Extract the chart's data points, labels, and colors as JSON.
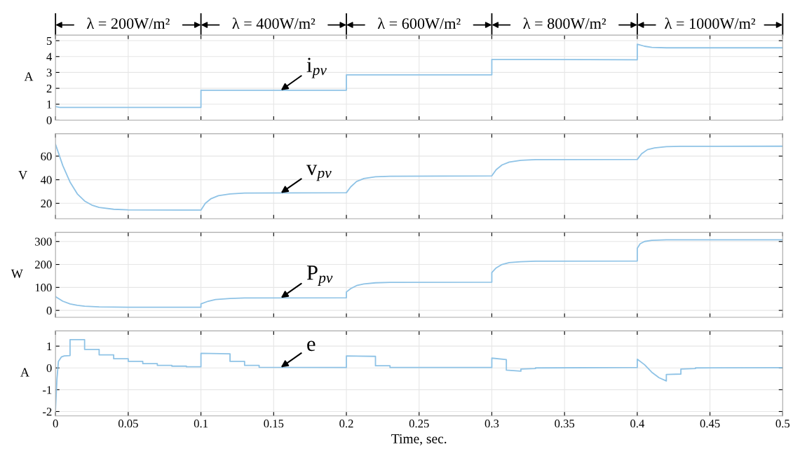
{
  "chart_data": [
    {
      "type": "line",
      "ylabel": "A",
      "xlim": [
        0,
        0.5
      ],
      "ylim": [
        0,
        5.35
      ],
      "yticks": [
        0,
        1,
        2,
        3,
        4,
        5
      ],
      "xticks": [
        0,
        0.05,
        0.1,
        0.15,
        0.2,
        0.25,
        0.3,
        0.35,
        0.4,
        0.45,
        0.5
      ],
      "tick_labels": "y",
      "grid": true,
      "annotations": [
        "λ = 200W/m²",
        "λ = 400W/m²",
        "λ = 600W/m²",
        "λ = 800W/m²",
        "λ = 1000W/m²"
      ],
      "series": [
        {
          "name": "i$_{pv}$",
          "color": "#8fc3e6",
          "x": [
            0,
            0.003,
            0.1,
            0.1,
            0.2,
            0.2,
            0.3,
            0.3,
            0.4,
            0.4,
            0.405,
            0.41,
            0.42,
            0.5
          ],
          "values": [
            0.85,
            0.8,
            0.8,
            1.88,
            1.88,
            2.85,
            2.85,
            3.82,
            3.8,
            4.78,
            4.65,
            4.58,
            4.55,
            4.55
          ]
        }
      ]
    },
    {
      "type": "line",
      "ylabel": "V",
      "xlim": [
        0,
        0.5
      ],
      "ylim": [
        7,
        79
      ],
      "yticks": [
        20,
        40,
        60
      ],
      "xticks": [
        0,
        0.05,
        0.1,
        0.15,
        0.2,
        0.25,
        0.3,
        0.35,
        0.4,
        0.45,
        0.5
      ],
      "tick_labels": "y",
      "grid": true,
      "series": [
        {
          "name": "v$_{pv}$",
          "color": "#8fc3e6",
          "x": [
            0,
            0.005,
            0.01,
            0.015,
            0.02,
            0.025,
            0.03,
            0.04,
            0.05,
            0.1,
            0.103,
            0.107,
            0.112,
            0.12,
            0.13,
            0.2,
            0.203,
            0.207,
            0.212,
            0.22,
            0.23,
            0.3,
            0.303,
            0.307,
            0.312,
            0.32,
            0.33,
            0.4,
            0.403,
            0.407,
            0.412,
            0.42,
            0.43,
            0.5
          ],
          "values": [
            70,
            52,
            38,
            28,
            22,
            18.5,
            16.5,
            15,
            14.5,
            14.3,
            20,
            24,
            26.5,
            28,
            28.7,
            29,
            34,
            38.5,
            41,
            42.5,
            43,
            43.3,
            48.5,
            52.5,
            55,
            56.5,
            57,
            57.2,
            62,
            65.5,
            67,
            68,
            68.3,
            68.4
          ]
        }
      ]
    },
    {
      "type": "line",
      "ylabel": "W",
      "xlim": [
        0,
        0.5
      ],
      "ylim": [
        -30,
        340
      ],
      "yticks": [
        0,
        100,
        200,
        300
      ],
      "xticks": [
        0,
        0.05,
        0.1,
        0.15,
        0.2,
        0.25,
        0.3,
        0.35,
        0.4,
        0.45,
        0.5
      ],
      "tick_labels": "y",
      "grid": true,
      "series": [
        {
          "name": "P$_{pv}$",
          "color": "#8fc3e6",
          "x": [
            0,
            0.005,
            0.01,
            0.015,
            0.02,
            0.03,
            0.05,
            0.1,
            0.1,
            0.105,
            0.11,
            0.12,
            0.13,
            0.2,
            0.2,
            0.203,
            0.207,
            0.212,
            0.22,
            0.23,
            0.3,
            0.3,
            0.303,
            0.307,
            0.312,
            0.32,
            0.33,
            0.4,
            0.4,
            0.402,
            0.405,
            0.41,
            0.42,
            0.5
          ],
          "values": [
            60,
            40,
            28,
            22,
            18,
            15,
            14,
            14,
            28,
            40,
            47,
            52,
            54,
            55,
            80,
            95,
            108,
            115,
            120,
            122,
            123,
            165,
            185,
            200,
            208,
            212,
            214,
            215,
            270,
            290,
            300,
            305,
            307,
            307
          ]
        }
      ]
    },
    {
      "type": "line",
      "ylabel": "A",
      "xlabel": "Time, sec.",
      "xlim": [
        0,
        0.5
      ],
      "ylim": [
        -2.2,
        1.7
      ],
      "yticks": [
        -2,
        -1,
        0,
        1
      ],
      "xticks": [
        0,
        0.05,
        0.1,
        0.15,
        0.2,
        0.25,
        0.3,
        0.35,
        0.4,
        0.45,
        0.5
      ],
      "grid": true,
      "series": [
        {
          "name": "e",
          "color": "#8fc3e6",
          "x": [
            0,
            0.001,
            0.002,
            0.004,
            0.006,
            0.01,
            0.01,
            0.02,
            0.02,
            0.03,
            0.03,
            0.04,
            0.04,
            0.05,
            0.05,
            0.06,
            0.06,
            0.07,
            0.07,
            0.08,
            0.08,
            0.09,
            0.09,
            0.1,
            0.1,
            0.12,
            0.12,
            0.13,
            0.13,
            0.14,
            0.14,
            0.2,
            0.2,
            0.22,
            0.22,
            0.23,
            0.23,
            0.3,
            0.3,
            0.31,
            0.31,
            0.32,
            0.32,
            0.33,
            0.33,
            0.4,
            0.4,
            0.405,
            0.41,
            0.415,
            0.42,
            0.42,
            0.43,
            0.43,
            0.44,
            0.44,
            0.5
          ],
          "values": [
            -1.9,
            -0.5,
            0.3,
            0.5,
            0.55,
            0.57,
            1.3,
            1.3,
            0.85,
            0.85,
            0.6,
            0.6,
            0.42,
            0.42,
            0.3,
            0.3,
            0.2,
            0.2,
            0.12,
            0.12,
            0.08,
            0.08,
            0.05,
            0.05,
            0.67,
            0.65,
            0.3,
            0.3,
            0.12,
            0.12,
            0.03,
            0.02,
            0.55,
            0.53,
            0.1,
            0.1,
            0.02,
            0.02,
            0.45,
            0.38,
            -0.1,
            -0.15,
            -0.05,
            -0.03,
            0.0,
            0.02,
            0.4,
            0.15,
            -0.2,
            -0.45,
            -0.6,
            -0.3,
            -0.28,
            -0.05,
            -0.03,
            0.0,
            0.01
          ]
        }
      ]
    }
  ]
}
